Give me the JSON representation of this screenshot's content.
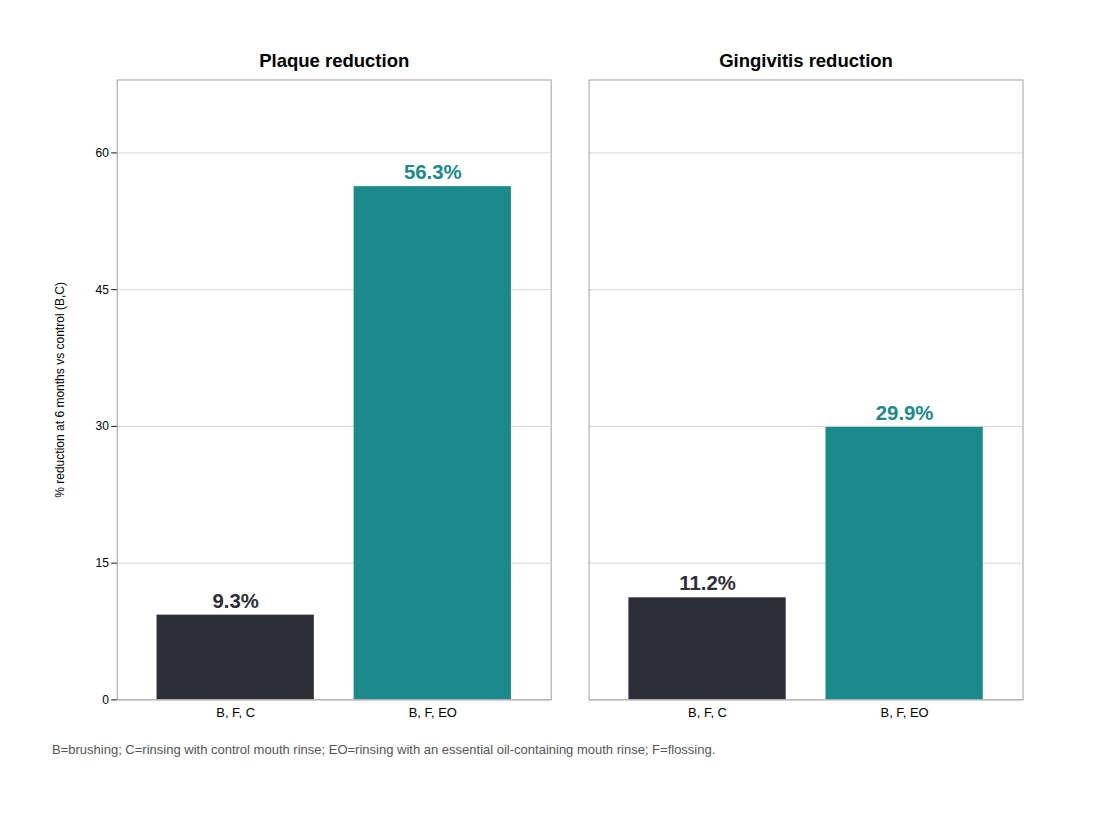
{
  "chart_data": {
    "type": "bar",
    "ylabel": "% reduction at 6 months vs control (B,C)",
    "categories": [
      "B, F, C",
      "B, F, EO"
    ],
    "series": [
      {
        "name": "Plaque reduction",
        "values": [
          9.3,
          56.3
        ],
        "value_labels": [
          "9.3%",
          "56.3%"
        ],
        "colors": [
          "#2E2E38",
          "#1A8A8A"
        ]
      },
      {
        "name": "Gingivitis reduction",
        "values": [
          11.2,
          29.9
        ],
        "value_labels": [
          "11.2%",
          "29.9%"
        ],
        "colors": [
          "#2E2E38",
          "#1A8A8A"
        ]
      }
    ],
    "ylim": [
      0,
      68
    ],
    "yticks": [
      0,
      15,
      30,
      45,
      60
    ],
    "grid": true,
    "data_labels": true,
    "caption": "B=brushing; C=rinsing with control mouth rinse; EO=rinsing with an essential oil-containing mouth rinse; F=flossing."
  }
}
